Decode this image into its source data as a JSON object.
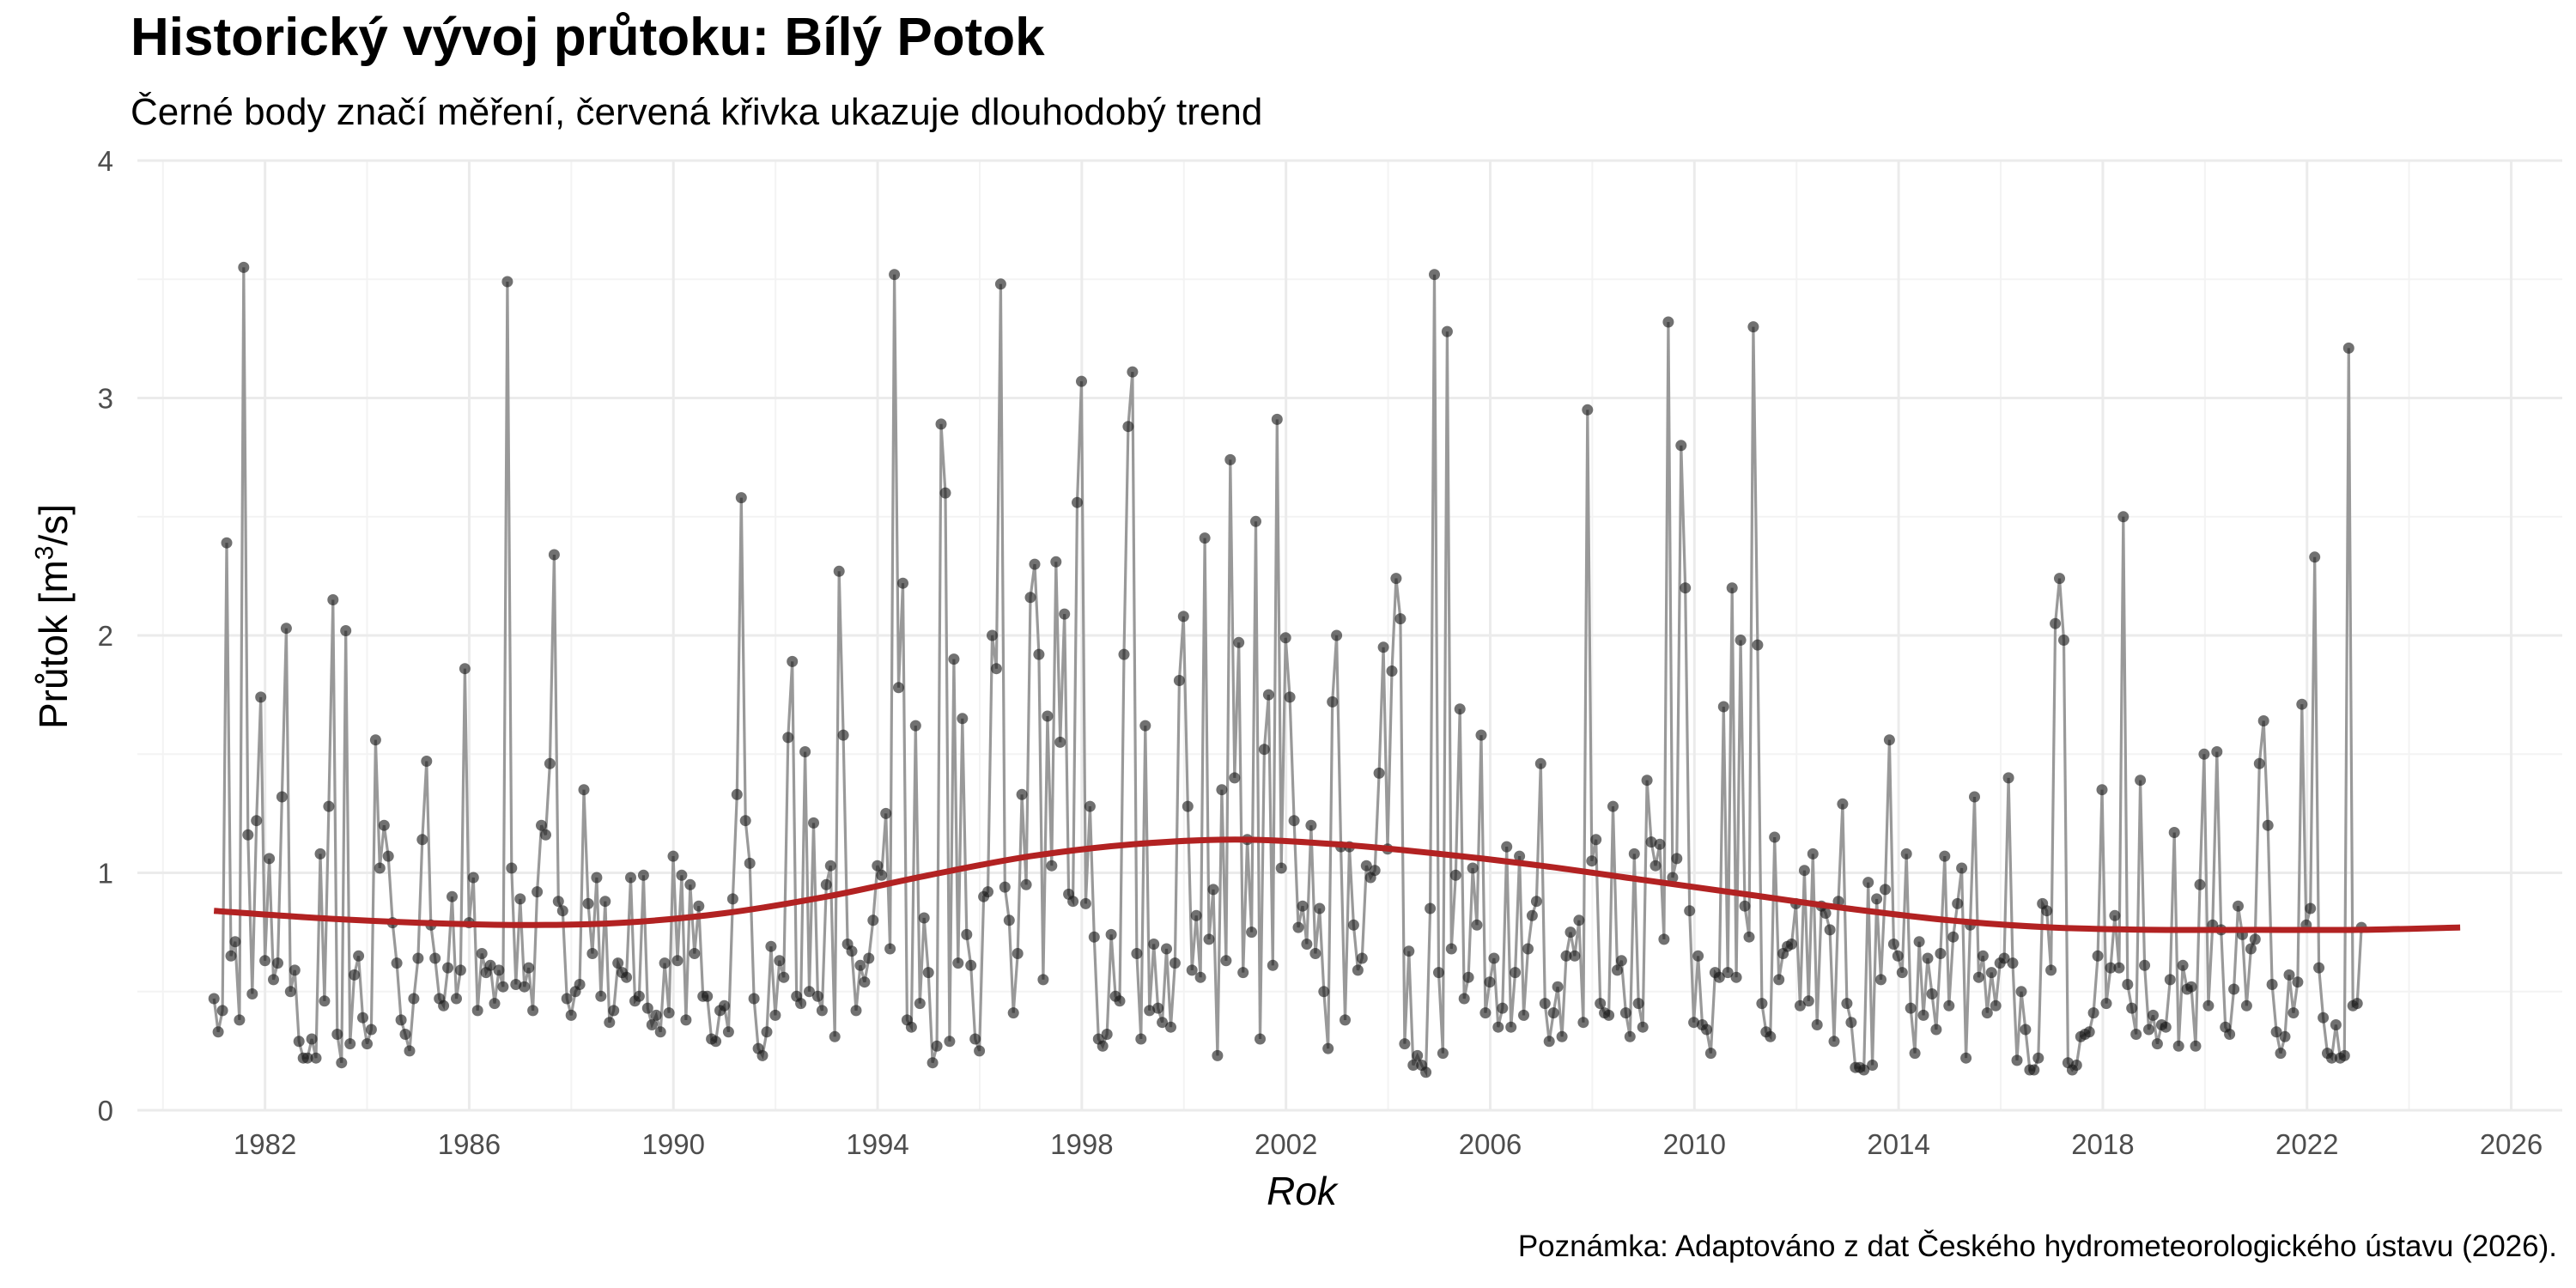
{
  "title": "Historický vývoj průtoku: Bílý Potok",
  "subtitle": "Černé body značí měření, červená křivka ukazuje dlouhodobý trend",
  "caption": "Poznámka: Adaptováno z dat Českého hydrometeorologického ústavu (2026).",
  "colors": {
    "points": "#1a1a1a",
    "line": "#999999",
    "trend": "#b22222",
    "grid_major": "#ebebeb",
    "grid_minor": "#f3f3f3",
    "tick": "#4d4d4d"
  },
  "chart_data": {
    "type": "line",
    "title": "Historický vývoj průtoku: Bílý Potok",
    "xlabel": "Rok",
    "ylabel_prefix": "Průtok [m",
    "ylabel_sup": "3",
    "ylabel_suffix": "/s]",
    "xlim": [
      1979.5,
      2027.0
    ],
    "ylim": [
      0,
      4
    ],
    "x_ticks": [
      1982,
      1986,
      1990,
      1994,
      1998,
      2002,
      2006,
      2010,
      2014,
      2018,
      2022,
      2026
    ],
    "y_ticks": [
      0,
      1,
      2,
      3,
      4
    ],
    "grid": true,
    "series": [
      {
        "name": "Měření",
        "start_year": 1981.0,
        "step": 0.0833,
        "values": [
          0.47,
          0.33,
          0.42,
          2.39,
          0.65,
          0.71,
          0.38,
          3.55,
          1.16,
          0.49,
          1.22,
          1.74,
          0.63,
          1.06,
          0.55,
          0.62,
          1.32,
          2.03,
          0.5,
          0.59,
          0.29,
          0.22,
          0.22,
          0.3,
          0.22,
          1.08,
          0.46,
          1.28,
          2.15,
          0.32,
          0.2,
          2.02,
          0.28,
          0.57,
          0.65,
          0.39,
          0.28,
          0.34,
          1.56,
          1.02,
          1.2,
          1.07,
          0.79,
          0.62,
          0.38,
          0.32,
          0.25,
          0.47,
          0.64,
          1.14,
          1.47,
          0.78,
          0.64,
          0.47,
          0.44,
          0.6,
          0.9,
          0.47,
          0.59,
          1.86,
          0.79,
          0.98,
          0.42,
          0.66,
          0.58,
          0.61,
          0.45,
          0.59,
          0.52,
          3.49,
          1.02,
          0.53,
          0.89,
          0.52,
          0.6,
          0.42,
          0.92,
          1.2,
          1.16,
          1.46,
          2.34,
          0.88,
          0.84,
          0.47,
          0.4,
          0.5,
          0.53,
          1.35,
          0.87,
          0.66,
          0.98,
          0.48,
          0.88,
          0.37,
          0.42,
          0.62,
          0.58,
          0.56,
          0.98,
          0.46,
          0.48,
          0.99,
          0.43,
          0.36,
          0.4,
          0.33,
          0.62,
          0.41,
          1.07,
          0.63,
          0.99,
          0.38,
          0.95,
          0.66,
          0.86,
          0.48,
          0.48,
          0.3,
          0.29,
          0.42,
          0.44,
          0.33,
          0.89,
          1.33,
          2.58,
          1.22,
          1.04,
          0.47,
          0.26,
          0.23,
          0.33,
          0.69,
          0.4,
          0.63,
          0.56,
          1.57,
          1.89,
          0.48,
          0.45,
          1.51,
          0.5,
          1.21,
          0.48,
          0.42,
          0.95,
          1.03,
          0.31,
          2.27,
          1.58,
          0.7,
          0.67,
          0.42,
          0.61,
          0.54,
          0.64,
          0.8,
          1.03,
          0.99,
          1.25,
          0.68,
          3.52,
          1.78,
          2.22,
          0.38,
          0.35,
          1.62,
          0.45,
          0.81,
          0.58,
          0.2,
          0.27,
          2.89,
          2.6,
          0.29,
          1.9,
          0.62,
          1.65,
          0.74,
          0.61,
          0.3,
          0.25,
          0.9,
          0.92,
          2,
          1.86,
          3.48,
          0.94,
          0.8,
          0.41,
          0.66,
          1.33,
          0.95,
          2.16,
          2.3,
          1.92,
          0.55,
          1.66,
          1.03,
          2.31,
          1.55,
          2.09,
          0.91,
          0.88,
          2.56,
          3.07,
          0.87,
          1.28,
          0.73,
          0.3,
          0.27,
          0.32,
          0.74,
          0.48,
          0.46,
          1.92,
          2.88,
          3.11,
          0.66,
          0.3,
          1.62,
          0.42,
          0.7,
          0.43,
          0.37,
          0.68,
          0.35,
          0.62,
          1.81,
          2.08,
          1.28,
          0.59,
          0.82,
          0.56,
          2.41,
          0.72,
          0.93,
          0.23,
          1.35,
          0.63,
          2.74,
          1.4,
          1.97,
          0.58,
          1.14,
          0.75,
          2.48,
          0.3,
          1.52,
          1.75,
          0.61,
          2.91,
          1.02,
          1.99,
          1.74,
          1.22,
          0.77,
          0.86,
          0.7,
          1.2,
          0.66,
          0.85,
          0.5,
          0.26,
          1.72,
          2,
          1.11,
          0.38,
          1.11,
          0.78,
          0.59,
          0.64,
          1.03,
          0.98,
          1.01,
          1.42,
          1.95,
          1.1,
          1.85,
          2.24,
          2.07,
          0.28,
          0.67,
          0.19,
          0.23,
          0.19,
          0.16,
          0.85,
          3.52,
          0.58,
          0.24,
          3.28,
          0.68,
          0.99,
          1.69,
          0.47,
          0.56,
          1.02,
          0.78,
          1.58,
          0.41,
          0.54,
          0.64,
          0.35,
          0.43,
          1.11,
          0.35,
          0.58,
          1.07,
          0.4,
          0.68,
          0.82,
          0.88,
          1.46,
          0.45,
          0.29,
          0.41,
          0.52,
          0.31,
          0.65,
          0.75,
          0.65,
          0.8,
          0.37,
          2.95,
          1.05,
          1.14,
          0.45,
          0.41,
          0.4,
          1.28,
          0.59,
          0.63,
          0.41,
          0.31,
          1.08,
          0.45,
          0.35,
          1.39,
          1.13,
          1.03,
          1.12,
          0.72,
          3.32,
          0.98,
          1.06,
          2.8,
          2.2,
          0.84,
          0.37,
          0.65,
          0.36,
          0.34,
          0.24,
          0.58,
          0.56,
          1.7,
          0.58,
          2.2,
          0.56,
          1.98,
          0.86,
          0.73,
          3.3,
          1.96,
          0.45,
          0.33,
          0.31,
          1.15,
          0.55,
          0.66,
          0.69,
          0.7,
          0.87,
          0.44,
          1.01,
          0.46,
          1.08,
          0.36,
          0.86,
          0.83,
          0.76,
          0.29,
          0.88,
          1.29,
          0.45,
          0.37,
          0.18,
          0.18,
          0.17,
          0.96,
          0.19,
          0.89,
          0.55,
          0.93,
          1.56,
          0.7,
          0.65,
          0.58,
          1.08,
          0.43,
          0.24,
          0.71,
          0.4,
          0.64,
          0.49,
          0.34,
          0.66,
          1.07,
          0.44,
          0.73,
          0.87,
          1.02,
          0.22,
          0.78,
          1.32,
          0.56,
          0.65,
          0.41,
          0.58,
          0.44,
          0.62,
          0.64,
          1.4,
          0.62,
          0.21,
          0.5,
          0.34,
          0.17,
          0.17,
          0.22,
          0.87,
          0.84,
          0.59,
          2.05,
          2.24,
          1.98,
          0.2,
          0.17,
          0.19,
          0.31,
          0.32,
          0.33,
          0.41,
          0.65,
          1.35,
          0.45,
          0.6,
          0.82,
          0.6,
          2.5,
          0.53,
          0.43,
          0.32,
          1.39,
          0.61,
          0.34,
          0.4,
          0.28,
          0.36,
          0.35,
          0.55,
          1.17,
          0.27,
          0.61,
          0.51,
          0.52,
          0.27,
          0.95,
          1.5,
          0.44,
          0.78,
          1.51,
          0.76,
          0.35,
          0.32,
          0.51,
          0.86,
          0.74,
          0.44,
          0.68,
          0.72,
          1.46,
          1.64,
          1.2,
          0.53,
          0.33,
          0.24,
          0.31,
          0.57,
          0.41,
          0.54,
          1.71,
          0.78,
          0.85,
          2.33,
          0.6,
          0.39,
          0.24,
          0.22,
          0.36,
          0.22,
          0.23,
          3.21,
          0.44,
          0.45,
          0.77
        ]
      },
      {
        "name": "Dlouhodobý trend",
        "x": [
          1981,
          1983,
          1985,
          1987,
          1989,
          1991,
          1993,
          1995,
          1997,
          1999,
          2001,
          2003,
          2005,
          2007,
          2009,
          2011,
          2013,
          2015,
          2017,
          2019,
          2021,
          2023,
          2025
        ],
        "values": [
          0.84,
          0.81,
          0.79,
          0.78,
          0.79,
          0.83,
          0.9,
          0.99,
          1.07,
          1.12,
          1.14,
          1.12,
          1.08,
          1.03,
          0.97,
          0.91,
          0.85,
          0.8,
          0.77,
          0.76,
          0.76,
          0.76,
          0.77
        ]
      }
    ]
  }
}
